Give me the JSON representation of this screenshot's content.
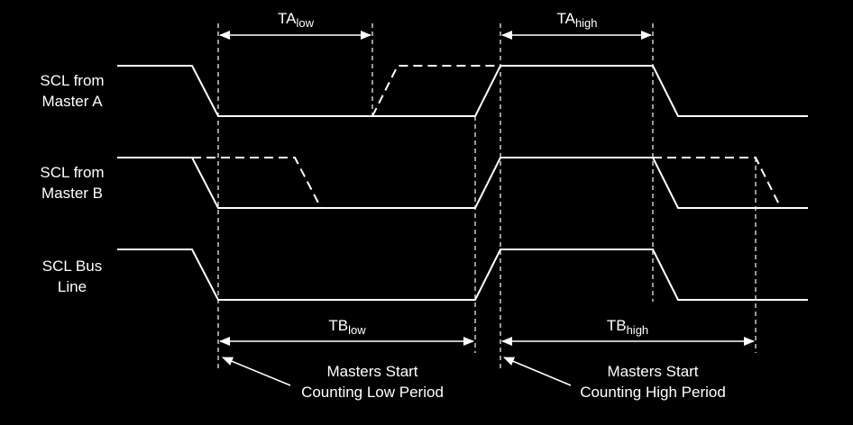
{
  "signals": {
    "master_a": {
      "line1": "SCL from",
      "line2": "Master A"
    },
    "master_b": {
      "line1": "SCL from",
      "line2": "Master B"
    },
    "bus": {
      "line1": "SCL Bus",
      "line2": "Line"
    }
  },
  "timings": {
    "ta_low": {
      "base": "TA",
      "sub": "low"
    },
    "ta_high": {
      "base": "TA",
      "sub": "high"
    },
    "tb_low": {
      "base": "TB",
      "sub": "low"
    },
    "tb_high": {
      "base": "TB",
      "sub": "high"
    }
  },
  "annotations": {
    "low": {
      "line1": "Masters Start",
      "line2": "Counting Low Period"
    },
    "high": {
      "line1": "Masters Start",
      "line2": "Counting High Period"
    }
  },
  "colors": {
    "background": "#000000",
    "foreground": "#ffffff"
  }
}
